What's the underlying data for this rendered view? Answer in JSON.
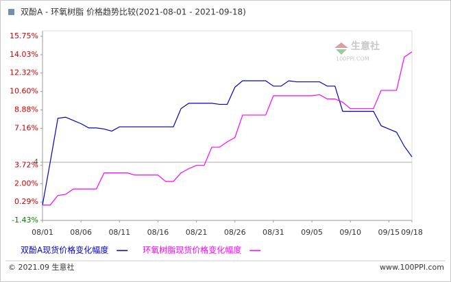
{
  "chart_data": {
    "type": "line",
    "title": "双酚A - 环氧树脂  价格趋势比较(2021-08-01 - 2021-09-18)",
    "categories": [
      "08/01",
      null,
      null,
      null,
      null,
      "08/06",
      null,
      null,
      null,
      null,
      "08/11",
      null,
      null,
      null,
      null,
      "08/16",
      null,
      null,
      null,
      null,
      "08/21",
      null,
      null,
      null,
      null,
      "08/26",
      null,
      null,
      null,
      null,
      "08/31",
      null,
      null,
      null,
      null,
      "09/05",
      null,
      null,
      null,
      null,
      "09/10",
      null,
      null,
      null,
      null,
      "09/15",
      null,
      null,
      "09/18"
    ],
    "series": [
      {
        "name": "双酚A现货价格变化幅度",
        "color": "#0000c8",
        "values": [
          0,
          4.0,
          8.1,
          8.2,
          7.9,
          7.6,
          7.2,
          7.2,
          7.1,
          6.9,
          7.3,
          7.3,
          7.3,
          7.3,
          7.3,
          7.3,
          7.3,
          7.3,
          9.0,
          9.5,
          9.5,
          9.5,
          9.5,
          9.4,
          9.4,
          11.0,
          11.6,
          11.6,
          11.6,
          11.6,
          11.1,
          11.1,
          11.6,
          11.5,
          11.5,
          11.5,
          11.5,
          11.1,
          11.1,
          8.75,
          8.75,
          8.75,
          8.75,
          8.75,
          7.4,
          7.1,
          6.8,
          5.5,
          4.5
        ]
      },
      {
        "name": "环氧树脂现货价格变化幅度",
        "color": "#ff00ff",
        "values": [
          0,
          0,
          0.9,
          1.0,
          1.5,
          1.5,
          1.5,
          1.5,
          3.0,
          3.0,
          3.0,
          3.0,
          2.8,
          2.8,
          2.8,
          2.8,
          2.2,
          2.2,
          3.0,
          3.4,
          3.7,
          3.7,
          5.4,
          5.4,
          5.9,
          6.3,
          8.4,
          8.4,
          8.4,
          8.4,
          10.2,
          10.2,
          10.2,
          10.2,
          10.2,
          10.2,
          10.3,
          9.9,
          9.9,
          9.6,
          9.0,
          9.0,
          9.0,
          9.0,
          10.7,
          10.7,
          10.7,
          13.8,
          14.3
        ]
      }
    ],
    "ylim": [
      -1.43,
      15.75
    ],
    "yticks": [
      {
        "value": 15.75,
        "label": "15.75%"
      },
      {
        "value": 14.03,
        "label": "14.03%"
      },
      {
        "value": 12.32,
        "label": "12.32%"
      },
      {
        "value": 10.6,
        "label": "10.60%"
      },
      {
        "value": 8.88,
        "label": "8.88%"
      },
      {
        "value": 7.16,
        "label": "7.16%"
      },
      4,
      {
        "value": 3.72,
        "label": "3.72%"
      },
      {
        "value": 2.0,
        "label": "2.00%"
      },
      {
        "value": 0.29,
        "label": "0.29%"
      },
      {
        "value": -1.43,
        "label": "-1.43%"
      }
    ],
    "grid": false
  },
  "watermark": {
    "name": "生意社",
    "site": "100PPI.COM"
  },
  "footer": {
    "copyright": "© 2021.09 生意社",
    "site": "www.100PPI.com"
  }
}
